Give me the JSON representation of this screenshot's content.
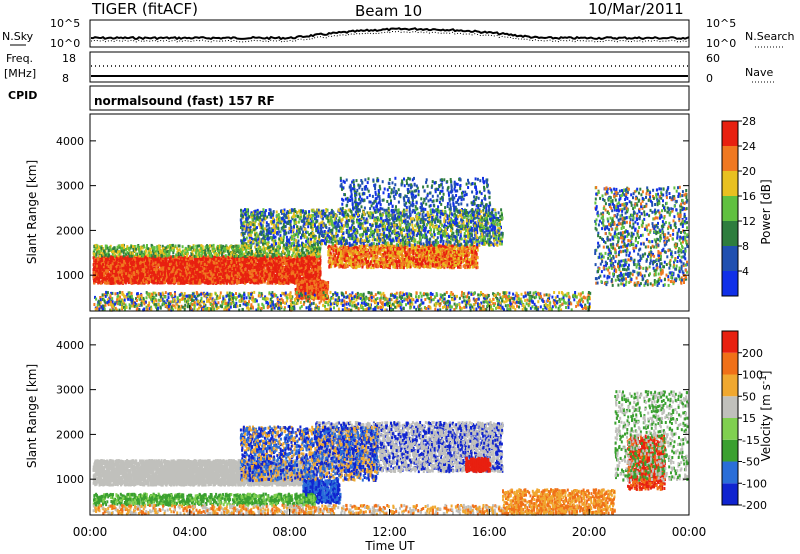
{
  "header": {
    "radar": "TIGER (fitACF)",
    "beam": "Beam 10",
    "date": "10/Mar/2011"
  },
  "summary_panels": {
    "nsky_label": "N.Sky",
    "nsearch_label": "N.Search",
    "nsky_ticks": [
      "10^5",
      "10^0"
    ],
    "nsearch_ticks": [
      "10^5",
      "10^0"
    ],
    "freq_label_1": "Freq.",
    "freq_label_2": "[MHz]",
    "freq_ticks": [
      "18",
      "8"
    ],
    "nave_label": "Nave",
    "nave_ticks": [
      "60",
      "0"
    ],
    "cpid_label": "CPID",
    "cpid_text": "normalsound (fast) 157 RF"
  },
  "time_axis": {
    "label": "Time UT",
    "ticks": [
      "00:00",
      "04:00",
      "08:00",
      "12:00",
      "16:00",
      "20:00",
      "00:00"
    ]
  },
  "chart_data": [
    {
      "type": "heatmap",
      "title": "",
      "xlabel": "Time UT",
      "ylabel": "Slant Range [km]",
      "x_range_hours": [
        0,
        24
      ],
      "ylim": [
        200,
        4600
      ],
      "yticks": [
        1000,
        2000,
        3000,
        4000
      ],
      "colorbar_label": "Power [dB]",
      "colorbar_ticks": [
        4,
        8,
        12,
        16,
        20,
        24,
        28
      ],
      "colorbar_colors": [
        "#1030e8",
        "#2050b0",
        "#2e7d3e",
        "#60c040",
        "#e8c020",
        "#f07820",
        "#e82010"
      ]
    },
    {
      "type": "heatmap",
      "title": "",
      "xlabel": "Time UT",
      "ylabel": "Slant Range [km]",
      "x_range_hours": [
        0,
        24
      ],
      "ylim": [
        200,
        4600
      ],
      "yticks": [
        1000,
        2000,
        3000,
        4000
      ],
      "colorbar_label": "Velocity [m s^-1]",
      "colorbar_ticks": [
        200,
        100,
        50,
        15,
        -15,
        -50,
        -100,
        -200
      ],
      "colorbar_colors": [
        "#1024d0",
        "#2a6ed8",
        "#3aa030",
        "#80d050",
        "#c0c0bc",
        "#f0a830",
        "#f07018",
        "#e82010"
      ]
    }
  ]
}
